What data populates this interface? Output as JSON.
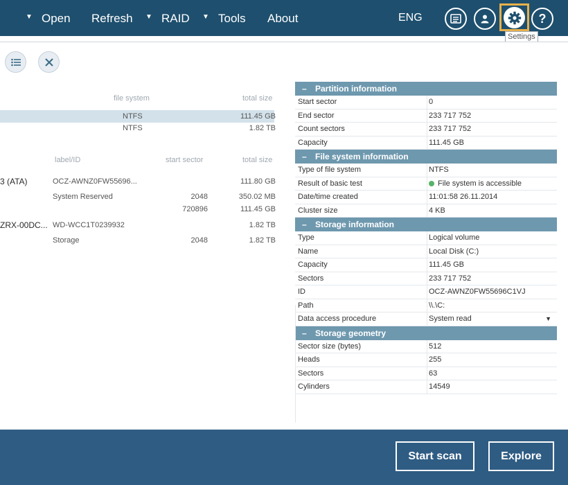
{
  "topbar": {
    "menu": [
      {
        "label": "Open",
        "has_arrow": true
      },
      {
        "label": "Refresh",
        "has_arrow": false
      },
      {
        "label": "RAID",
        "has_arrow": true
      },
      {
        "label": "Tools",
        "has_arrow": true
      },
      {
        "label": "About",
        "has_arrow": false
      }
    ],
    "arrow_glyph": "▼",
    "language": "ENG",
    "settings_tooltip": "Settings",
    "colors": {
      "bar": "#1e4f6e",
      "highlight": "#e8b04a"
    }
  },
  "toolbar": {
    "icons": [
      "list-icon",
      "close-icon"
    ]
  },
  "partitions_table": {
    "headers": {
      "file_system": "file system",
      "total_size": "total size"
    },
    "rows": [
      {
        "file_system": "NTFS",
        "total_size": "111.45 GB",
        "selected": true
      },
      {
        "file_system": "NTFS",
        "total_size": "1.82 TB",
        "selected": false
      }
    ]
  },
  "storages_table": {
    "headers": {
      "label": "label/ID",
      "start_sector": "start sector",
      "total_size": "total size"
    },
    "rows": [
      {
        "name": "3 (ATA)",
        "label": "OCZ-AWNZ0FW55696...",
        "start_sector": "",
        "total_size": "111.80 GB"
      },
      {
        "name": "",
        "label": "System Reserved",
        "start_sector": "2048",
        "total_size": "350.02 MB"
      },
      {
        "name": "",
        "label": "",
        "start_sector": "720896",
        "total_size": "111.45 GB"
      },
      {
        "name": "ZRX-00DC...",
        "label": "WD-WCC1T0239932",
        "start_sector": "",
        "total_size": "1.82 TB"
      },
      {
        "name": "",
        "label": "Storage",
        "start_sector": "2048",
        "total_size": "1.82 TB"
      }
    ]
  },
  "info_panel": {
    "minus_glyph": "–",
    "dropdown_glyph": "▼",
    "sections": [
      {
        "title": "Partition information",
        "rows": [
          {
            "key": "Start sector",
            "value": "0"
          },
          {
            "key": "End sector",
            "value": "233 717 752"
          },
          {
            "key": "Count sectors",
            "value": "233 717 752"
          },
          {
            "key": "Capacity",
            "value": " 111.45 GB"
          }
        ]
      },
      {
        "title": "File system information",
        "rows": [
          {
            "key": "Type of file system",
            "value": "NTFS"
          },
          {
            "key": "Result of basic test",
            "value": "File system is accessible",
            "status": "ok"
          },
          {
            "key": "Date/time created",
            "value": "11:01:58 26.11.2014"
          },
          {
            "key": "Cluster size",
            "value": "4 KB"
          }
        ]
      },
      {
        "title": "Storage information",
        "rows": [
          {
            "key": "Type",
            "value": "Logical volume"
          },
          {
            "key": "Name",
            "value": "Local Disk (C:)"
          },
          {
            "key": "Capacity",
            "value": " 111.45 GB"
          },
          {
            "key": "Sectors",
            "value": "233 717 752"
          },
          {
            "key": "ID",
            "value": "OCZ-AWNZ0FW55696C1VJ"
          },
          {
            "key": "Path",
            "value": "\\\\.\\C:"
          },
          {
            "key": "Data access procedure",
            "value": "System read",
            "dropdown": true
          }
        ]
      },
      {
        "title": "Storage geometry",
        "rows": [
          {
            "key": "Sector size (bytes)",
            "value": "512"
          },
          {
            "key": "Heads",
            "value": "255"
          },
          {
            "key": "Sectors",
            "value": "63"
          },
          {
            "key": "Cylinders",
            "value": "14549"
          }
        ]
      }
    ]
  },
  "bottom": {
    "start_scan_label": "Start scan",
    "explore_label": "Explore"
  }
}
